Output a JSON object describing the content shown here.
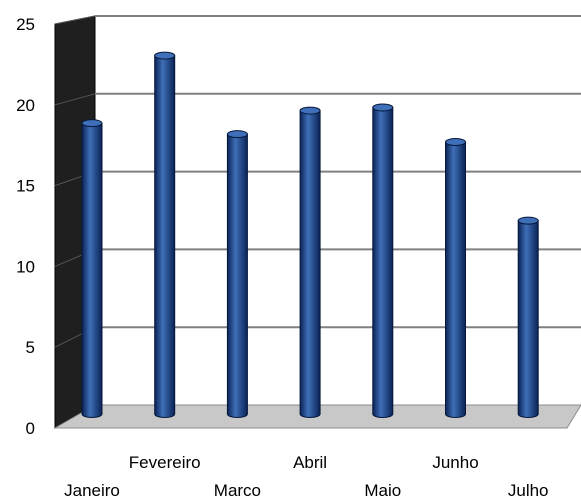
{
  "chart_data": {
    "type": "bar",
    "style": "3d-cylinder",
    "title": "",
    "xlabel": "",
    "ylabel": "",
    "categories": [
      "Janeiro",
      "Fevereiro",
      "Marco",
      "Abril",
      "Maio",
      "Junho",
      "Julho"
    ],
    "series": [
      {
        "values": [
          18.5,
          22.8,
          17.8,
          19.3,
          19.5,
          17.3,
          12.3
        ]
      }
    ],
    "ylim": [
      0,
      25
    ],
    "yticks": [
      "0",
      "5",
      "10",
      "15",
      "20",
      "25"
    ],
    "grid": true,
    "legend": "none",
    "colors": {
      "bar": "#0d2f6b",
      "bar_highlight": "#3f6fb8",
      "back_wall": "#ffffff",
      "side_wall": "#1f1f1f",
      "floor": "#c8c8c8",
      "gridline": "#808080"
    }
  }
}
